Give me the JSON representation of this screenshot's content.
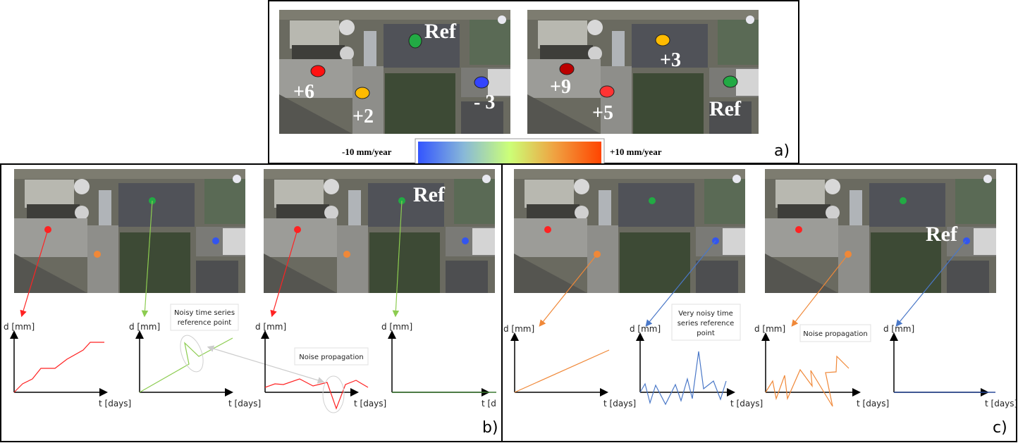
{
  "panel_a": {
    "left_labels": {
      "ref": "Ref",
      "red": "+6",
      "yellow": "+2",
      "blue": "- 3"
    },
    "right_labels": {
      "yellow": "+3",
      "darkred": "+9",
      "red": "+5",
      "ref": "Ref"
    },
    "colorbar": {
      "min_label": "-10 mm/year",
      "max_label": "+10 mm/year",
      "colors": [
        "#3355ff",
        "#88b8d8",
        "#ccff77",
        "#f0a040",
        "#ff4400"
      ]
    },
    "letter": "a)"
  },
  "panel_b": {
    "ref_label": "Ref",
    "note_1_line1": "Noisy time series",
    "note_1_line2": "reference point",
    "note_2": "Noise propagation",
    "letter": "b)"
  },
  "panel_c": {
    "ref_label": "Ref",
    "note_1_line1": "Very noisy time",
    "note_1_line2": "series reference",
    "note_1_line3": "point",
    "note_2": "Noise propagation",
    "letter": "c)"
  },
  "axes": {
    "y_label": "d [mm]",
    "x_label": "t [days]",
    "x_label_clipped": "t [d"
  },
  "colors": {
    "red": "#ff2222",
    "green": "#22aa44",
    "orange": "#f08838",
    "blue": "#3355ee",
    "light_green": "#8ccc50",
    "steel_blue": "#4a78c8"
  }
}
